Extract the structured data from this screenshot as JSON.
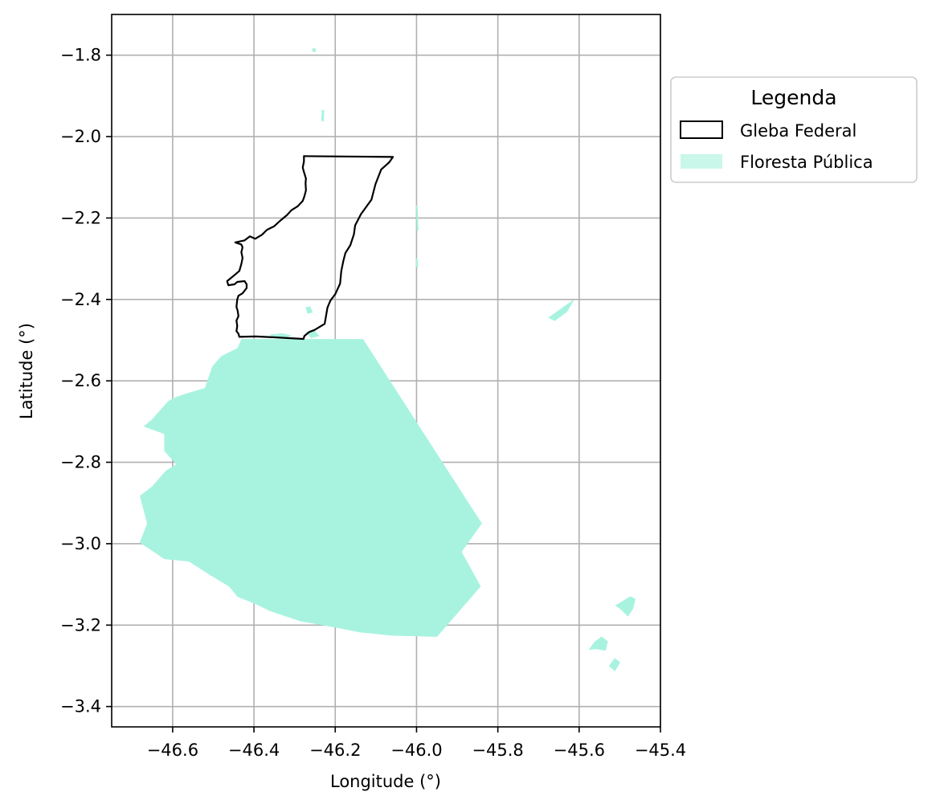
{
  "chart_data": {
    "type": "map",
    "xlabel": "Longitude (°)",
    "ylabel": "Latitude (°)",
    "xlim": [
      -46.75,
      -45.4
    ],
    "ylim": [
      -3.45,
      -1.7
    ],
    "grid": true,
    "x_ticks": [
      -46.6,
      -46.4,
      -46.2,
      -46.0,
      -45.8,
      -45.6,
      -45.4
    ],
    "x_tick_labels": [
      "−46.6",
      "−46.4",
      "−46.2",
      "−46.0",
      "−45.8",
      "−45.6",
      "−45.4"
    ],
    "y_ticks": [
      -1.8,
      -2.0,
      -2.2,
      -2.4,
      -2.6,
      -2.8,
      -3.0,
      -3.2,
      -3.4
    ],
    "y_tick_labels": [
      "−1.8",
      "−2.0",
      "−2.2",
      "−2.4",
      "−2.6",
      "−2.8",
      "−3.0",
      "−3.2",
      "−3.4"
    ],
    "legend": {
      "title": "Legenda",
      "placement": "outside-right-top",
      "entries": [
        {
          "label": "Gleba Federal",
          "style": "outline",
          "color": "#000000"
        },
        {
          "label": "Floresta Pública",
          "style": "fill",
          "color": "#a8f3e0"
        }
      ]
    },
    "layers": [
      {
        "name": "Gleba Federal",
        "style": "outline",
        "color": "#000000",
        "polygon": [
          [
            -46.277,
            -2.048
          ],
          [
            -46.058,
            -2.05
          ],
          [
            -46.067,
            -2.063
          ],
          [
            -46.087,
            -2.081
          ],
          [
            -46.101,
            -2.117
          ],
          [
            -46.111,
            -2.155
          ],
          [
            -46.137,
            -2.191
          ],
          [
            -46.14,
            -2.197
          ],
          [
            -46.151,
            -2.218
          ],
          [
            -46.154,
            -2.24
          ],
          [
            -46.163,
            -2.267
          ],
          [
            -46.175,
            -2.286
          ],
          [
            -46.18,
            -2.305
          ],
          [
            -46.185,
            -2.33
          ],
          [
            -46.188,
            -2.361
          ],
          [
            -46.193,
            -2.372
          ],
          [
            -46.2,
            -2.387
          ],
          [
            -46.212,
            -2.403
          ],
          [
            -46.219,
            -2.42
          ],
          [
            -46.226,
            -2.46
          ],
          [
            -46.251,
            -2.475
          ],
          [
            -46.264,
            -2.48
          ],
          [
            -46.276,
            -2.49
          ],
          [
            -46.278,
            -2.497
          ],
          [
            -46.354,
            -2.493
          ],
          [
            -46.396,
            -2.491
          ],
          [
            -46.436,
            -2.492
          ],
          [
            -46.438,
            -2.484
          ],
          [
            -46.443,
            -2.478
          ],
          [
            -46.441,
            -2.465
          ],
          [
            -46.443,
            -2.452
          ],
          [
            -46.438,
            -2.441
          ],
          [
            -46.44,
            -2.428
          ],
          [
            -46.443,
            -2.418
          ],
          [
            -46.441,
            -2.4
          ],
          [
            -46.438,
            -2.391
          ],
          [
            -46.428,
            -2.385
          ],
          [
            -46.418,
            -2.372
          ],
          [
            -46.418,
            -2.363
          ],
          [
            -46.423,
            -2.355
          ],
          [
            -46.441,
            -2.357
          ],
          [
            -46.448,
            -2.363
          ],
          [
            -46.463,
            -2.365
          ],
          [
            -46.466,
            -2.355
          ],
          [
            -46.45,
            -2.342
          ],
          [
            -46.436,
            -2.33
          ],
          [
            -46.431,
            -2.313
          ],
          [
            -46.428,
            -2.298
          ],
          [
            -46.431,
            -2.284
          ],
          [
            -46.428,
            -2.272
          ],
          [
            -46.431,
            -2.265
          ],
          [
            -46.446,
            -2.26
          ],
          [
            -46.423,
            -2.255
          ],
          [
            -46.41,
            -2.245
          ],
          [
            -46.397,
            -2.251
          ],
          [
            -46.38,
            -2.241
          ],
          [
            -46.368,
            -2.229
          ],
          [
            -46.35,
            -2.22
          ],
          [
            -46.336,
            -2.207
          ],
          [
            -46.319,
            -2.193
          ],
          [
            -46.308,
            -2.181
          ],
          [
            -46.292,
            -2.171
          ],
          [
            -46.28,
            -2.158
          ],
          [
            -46.276,
            -2.147
          ],
          [
            -46.272,
            -2.132
          ],
          [
            -46.273,
            -2.114
          ],
          [
            -46.272,
            -2.103
          ],
          [
            -46.277,
            -2.087
          ],
          [
            -46.28,
            -2.076
          ],
          [
            -46.277,
            -2.061
          ],
          [
            -46.277,
            -2.048
          ]
        ]
      },
      {
        "name": "Floresta Pública",
        "style": "fill",
        "color": "#a8f3e0",
        "polygons": [
          [
            [
              -46.43,
              -2.498
            ],
            [
              -46.132,
              -2.498
            ],
            [
              -45.847,
              -2.94
            ],
            [
              -45.84,
              -2.95
            ],
            [
              -45.89,
              -3.02
            ],
            [
              -45.843,
              -3.105
            ],
            [
              -45.95,
              -3.228
            ],
            [
              -46.06,
              -3.225
            ],
            [
              -46.14,
              -3.217
            ],
            [
              -46.2,
              -3.205
            ],
            [
              -46.285,
              -3.19
            ],
            [
              -46.36,
              -3.165
            ],
            [
              -46.395,
              -3.148
            ],
            [
              -46.44,
              -3.13
            ],
            [
              -46.46,
              -3.105
            ],
            [
              -46.51,
              -3.075
            ],
            [
              -46.56,
              -3.043
            ],
            [
              -46.62,
              -3.037
            ],
            [
              -46.68,
              -2.997
            ],
            [
              -46.662,
              -2.95
            ],
            [
              -46.68,
              -2.883
            ],
            [
              -46.65,
              -2.86
            ],
            [
              -46.617,
              -2.822
            ],
            [
              -46.59,
              -2.805
            ],
            [
              -46.62,
              -2.772
            ],
            [
              -46.62,
              -2.73
            ],
            [
              -46.67,
              -2.712
            ],
            [
              -46.65,
              -2.695
            ],
            [
              -46.61,
              -2.65
            ],
            [
              -46.59,
              -2.64
            ],
            [
              -46.56,
              -2.63
            ],
            [
              -46.52,
              -2.618
            ],
            [
              -46.502,
              -2.565
            ],
            [
              -46.48,
              -2.54
            ],
            [
              -46.44,
              -2.52
            ],
            [
              -46.43,
              -2.498
            ]
          ],
          [
            [
              -46.36,
              -2.487
            ],
            [
              -46.33,
              -2.484
            ],
            [
              -46.31,
              -2.489
            ],
            [
              -46.32,
              -2.494
            ],
            [
              -46.35,
              -2.494
            ]
          ],
          [
            [
              -46.27,
              -2.48
            ],
            [
              -46.25,
              -2.478
            ],
            [
              -46.24,
              -2.49
            ],
            [
              -46.26,
              -2.494
            ]
          ],
          [
            [
              -46.272,
              -2.42
            ],
            [
              -46.262,
              -2.418
            ],
            [
              -46.256,
              -2.432
            ],
            [
              -46.268,
              -2.434
            ]
          ],
          [
            [
              -45.614,
              -2.402
            ],
            [
              -45.64,
              -2.42
            ],
            [
              -45.675,
              -2.445
            ],
            [
              -45.66,
              -2.452
            ],
            [
              -45.63,
              -2.43
            ]
          ],
          [
            [
              -45.474,
              -3.13
            ],
            [
              -45.462,
              -3.136
            ],
            [
              -45.468,
              -3.16
            ],
            [
              -45.48,
              -3.178
            ],
            [
              -45.498,
              -3.16
            ],
            [
              -45.51,
              -3.152
            ]
          ],
          [
            [
              -45.545,
              -3.229
            ],
            [
              -45.53,
              -3.24
            ],
            [
              -45.535,
              -3.262
            ],
            [
              -45.56,
              -3.258
            ],
            [
              -45.575,
              -3.26
            ],
            [
              -45.562,
              -3.242
            ]
          ],
          [
            [
              -45.512,
              -3.282
            ],
            [
              -45.5,
              -3.292
            ],
            [
              -45.512,
              -3.312
            ],
            [
              -45.526,
              -3.3
            ]
          ],
          [
            [
              -46.255,
              -1.783
            ],
            [
              -46.248,
              -1.785
            ],
            [
              -46.25,
              -1.792
            ],
            [
              -46.256,
              -1.79
            ]
          ],
          [
            [
              -46.232,
              -1.935
            ],
            [
              -46.228,
              -1.936
            ],
            [
              -46.229,
              -1.962
            ],
            [
              -46.234,
              -1.96
            ]
          ],
          [
            [
              -46.0,
              -2.17
            ],
            [
              -45.998,
              -2.172
            ],
            [
              -45.996,
              -2.23
            ],
            [
              -45.999,
              -2.23
            ]
          ],
          [
            [
              -46.0,
              -2.3
            ],
            [
              -45.998,
              -2.302
            ],
            [
              -45.997,
              -2.32
            ],
            [
              -46.0,
              -2.32
            ]
          ]
        ]
      }
    ]
  }
}
